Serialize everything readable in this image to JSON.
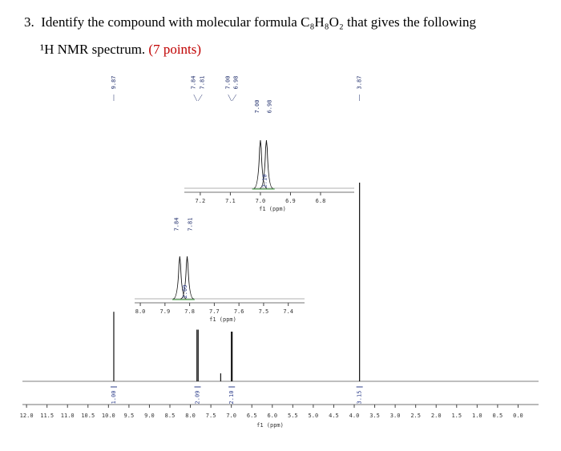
{
  "question": {
    "number": "3.",
    "text": "Identify the compound with molecular formula C₈H₈O₂ that gives the following",
    "text2": "¹H NMR spectrum.",
    "points": "(7 points)"
  },
  "chart_data": {
    "type": "nmr",
    "xlabel": "f1 (ppm)",
    "xlim": [
      12.1,
      -0.5
    ],
    "xticks": [
      {
        "value": 12.0,
        "label": "12.0"
      },
      {
        "value": 11.5,
        "label": "11.5"
      },
      {
        "value": 11.0,
        "label": "11.0"
      },
      {
        "value": 10.5,
        "label": "10.5"
      },
      {
        "value": 10.0,
        "label": "10.0"
      },
      {
        "value": 9.5,
        "label": "9.5"
      },
      {
        "value": 9.0,
        "label": "9.0"
      },
      {
        "value": 8.5,
        "label": "8.5"
      },
      {
        "value": 8.0,
        "label": "8.0"
      },
      {
        "value": 7.5,
        "label": "7.5"
      },
      {
        "value": 7.0,
        "label": "7.0"
      },
      {
        "value": 6.5,
        "label": "6.5"
      },
      {
        "value": 6.0,
        "label": "6.0"
      },
      {
        "value": 5.5,
        "label": "5.5"
      },
      {
        "value": 5.0,
        "label": "5.0"
      },
      {
        "value": 4.5,
        "label": "4.5"
      },
      {
        "value": 4.0,
        "label": "4.0"
      },
      {
        "value": 3.5,
        "label": "3.5"
      },
      {
        "value": 3.0,
        "label": "3.0"
      },
      {
        "value": 2.5,
        "label": "2.5"
      },
      {
        "value": 2.0,
        "label": "2.0"
      },
      {
        "value": 1.5,
        "label": "1.5"
      },
      {
        "value": 1.0,
        "label": "1.0"
      },
      {
        "value": 0.5,
        "label": "0.5"
      },
      {
        "value": 0.0,
        "label": "0.0"
      }
    ],
    "shifts": [
      9.87,
      7.84,
      7.81,
      7.26,
      7.0,
      6.98,
      3.87
    ],
    "heights": [
      0.35,
      0.26,
      0.26,
      0.04,
      0.25,
      0.25,
      1.0
    ],
    "shift_labels": [
      "9.87",
      "7.84",
      "7.81",
      null,
      "7.00",
      "6.98",
      "3.87"
    ],
    "integrals": {
      "positions": [
        9.87,
        7.825,
        6.99,
        3.87
      ],
      "values": [
        1.0,
        2.09,
        2.1,
        3.15
      ],
      "value_labels": [
        "1.00",
        "2.09",
        "2.10",
        "3.15"
      ]
    },
    "insets": [
      {
        "xlim": [
          7.253,
          6.688
        ],
        "xlabel": "f1 (ppm)",
        "xticks": [
          {
            "value": 7.2,
            "label": "7.2"
          },
          {
            "value": 7.1,
            "label": "7.1"
          },
          {
            "value": 7.0,
            "label": "7.0"
          },
          {
            "value": 6.9,
            "label": "6.9"
          },
          {
            "value": 6.8,
            "label": "6.8"
          }
        ],
        "shifts": [
          7.0,
          6.98
        ],
        "shift_labels": [
          "7.00",
          "6.98"
        ],
        "integral": 2.1,
        "integral_label": "2.10"
      },
      {
        "xlim": [
          8.023,
          7.334
        ],
        "xlabel": "f1 (ppm)",
        "xticks": [
          {
            "value": 8.0,
            "label": "8.0"
          },
          {
            "value": 7.9,
            "label": "7.9"
          },
          {
            "value": 7.8,
            "label": "7.8"
          },
          {
            "value": 7.7,
            "label": "7.7"
          },
          {
            "value": 7.6,
            "label": "7.6"
          },
          {
            "value": 7.5,
            "label": "7.5"
          },
          {
            "value": 7.4,
            "label": "7.4"
          }
        ],
        "shifts": [
          7.84,
          7.81
        ],
        "shift_labels": [
          "7.84",
          "7.81"
        ],
        "integral": 2.09,
        "integral_label": "2.09"
      }
    ]
  }
}
